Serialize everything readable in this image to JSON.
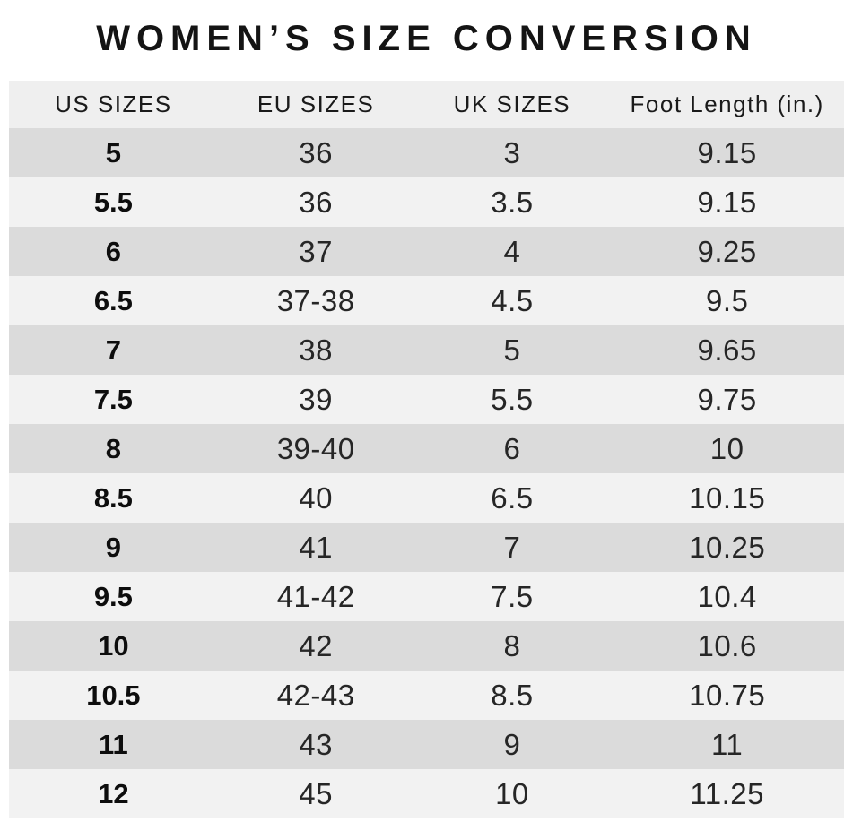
{
  "page": {
    "title": "WOMEN’S SIZE CONVERSION"
  },
  "colors": {
    "background": "#ffffff",
    "header_bg": "#efefef",
    "row_dark": "#dbdbdb",
    "row_light": "#f2f2f2",
    "text": "#262626",
    "title": "#141414"
  },
  "chart_data": {
    "type": "table",
    "title": "WOMEN’S SIZE CONVERSION",
    "columns": [
      "US SIZES",
      "EU SIZES",
      "UK SIZES",
      "Foot Length (in.)"
    ],
    "rows": [
      [
        "5",
        "36",
        "3",
        "9.15"
      ],
      [
        "5.5",
        "36",
        "3.5",
        "9.15"
      ],
      [
        "6",
        "37",
        "4",
        "9.25"
      ],
      [
        "6.5",
        "37-38",
        "4.5",
        "9.5"
      ],
      [
        "7",
        "38",
        "5",
        "9.65"
      ],
      [
        "7.5",
        "39",
        "5.5",
        "9.75"
      ],
      [
        "8",
        "39-40",
        "6",
        "10"
      ],
      [
        "8.5",
        "40",
        "6.5",
        "10.15"
      ],
      [
        "9",
        "41",
        "7",
        "10.25"
      ],
      [
        "9.5",
        "41-42",
        "7.5",
        "10.4"
      ],
      [
        "10",
        "42",
        "8",
        "10.6"
      ],
      [
        "10.5",
        "42-43",
        "8.5",
        "10.75"
      ],
      [
        "11",
        "43",
        "9",
        "11"
      ],
      [
        "12",
        "45",
        "10",
        "11.25"
      ]
    ]
  }
}
